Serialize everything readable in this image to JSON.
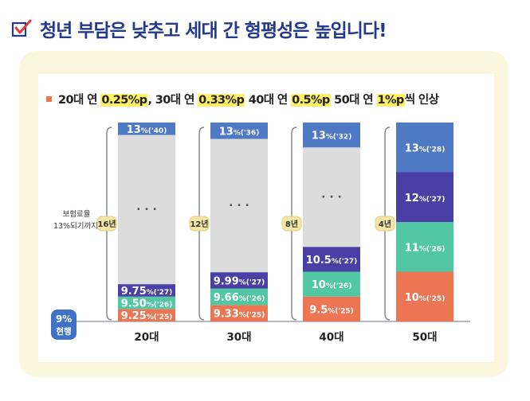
{
  "title": "청년 부담은 낮추고 세대 간 형평성은 높입니다!",
  "headline": {
    "parts": [
      {
        "text": "20대 연 ",
        "hl": false
      },
      {
        "text": "0.25%p",
        "hl": true
      },
      {
        "text": ", 30대 연 ",
        "hl": false
      },
      {
        "text": "0.33%p",
        "hl": true
      },
      {
        "text": " 40대 연 ",
        "hl": false
      },
      {
        "text": "0.5%p",
        "hl": true
      },
      {
        "text": " 50대 연 ",
        "hl": false
      },
      {
        "text": "1%p",
        "hl": true
      },
      {
        "text": "씩 인상",
        "hl": false
      }
    ]
  },
  "colors": {
    "orange": "#ec7553",
    "green": "#52c7a4",
    "purple": "#4a3fa5",
    "blue": "#5079c3",
    "gray": "#dcdcdc",
    "navy": "#233a8c",
    "badge_fill": "#f3e6a6",
    "baseline_blue": "#3f72c6"
  },
  "chart_data": {
    "type": "stacked-bar",
    "y_axis_label": "보험료율 13%되기까지",
    "baseline": {
      "value": "9%",
      "label": "현행"
    },
    "ylim": [
      9,
      13
    ],
    "categories": [
      "20대",
      "30대",
      "40대",
      "50대"
    ],
    "bars": [
      {
        "category": "20대",
        "years_label": "16년",
        "segments": [
          {
            "rate": 9.25,
            "value": "9.25",
            "year": "%('25)",
            "color": "orange"
          },
          {
            "rate": 9.5,
            "value": "9.50",
            "year": "%('26)",
            "color": "green"
          },
          {
            "rate": 9.75,
            "value": "9.75",
            "year": "%('27)",
            "color": "purple"
          },
          {
            "rate": 12.75,
            "value": "· · ·",
            "year": "",
            "color": "gray"
          },
          {
            "rate": 13,
            "value": "13",
            "year": "%('40)",
            "color": "blue"
          }
        ]
      },
      {
        "category": "30대",
        "years_label": "12년",
        "segments": [
          {
            "rate": 9.33,
            "value": "9.33",
            "year": "%('25)",
            "color": "orange"
          },
          {
            "rate": 9.66,
            "value": "9.66",
            "year": "%('26)",
            "color": "green"
          },
          {
            "rate": 9.99,
            "value": "9.99",
            "year": "%('27)",
            "color": "purple"
          },
          {
            "rate": 12.67,
            "value": "· · ·",
            "year": "",
            "color": "gray"
          },
          {
            "rate": 13,
            "value": "13",
            "year": "%('36)",
            "color": "blue"
          }
        ]
      },
      {
        "category": "40대",
        "years_label": "8년",
        "segments": [
          {
            "rate": 9.5,
            "value": "9.5",
            "year": "%('25)",
            "color": "orange"
          },
          {
            "rate": 10,
            "value": "10",
            "year": "%('26)",
            "color": "green"
          },
          {
            "rate": 10.5,
            "value": "10.5",
            "year": "%('27)",
            "color": "purple"
          },
          {
            "rate": 12.5,
            "value": "· · ·",
            "year": "",
            "color": "gray"
          },
          {
            "rate": 13,
            "value": "13",
            "year": "%('32)",
            "color": "blue"
          }
        ]
      },
      {
        "category": "50대",
        "years_label": "4년",
        "segments": [
          {
            "rate": 10,
            "value": "10",
            "year": "%('25)",
            "color": "orange"
          },
          {
            "rate": 11,
            "value": "11",
            "year": "%('26)",
            "color": "green"
          },
          {
            "rate": 12,
            "value": "12",
            "year": "%('27)",
            "color": "purple"
          },
          {
            "rate": 13,
            "value": "13",
            "year": "%('28)",
            "color": "blue"
          }
        ]
      }
    ]
  }
}
